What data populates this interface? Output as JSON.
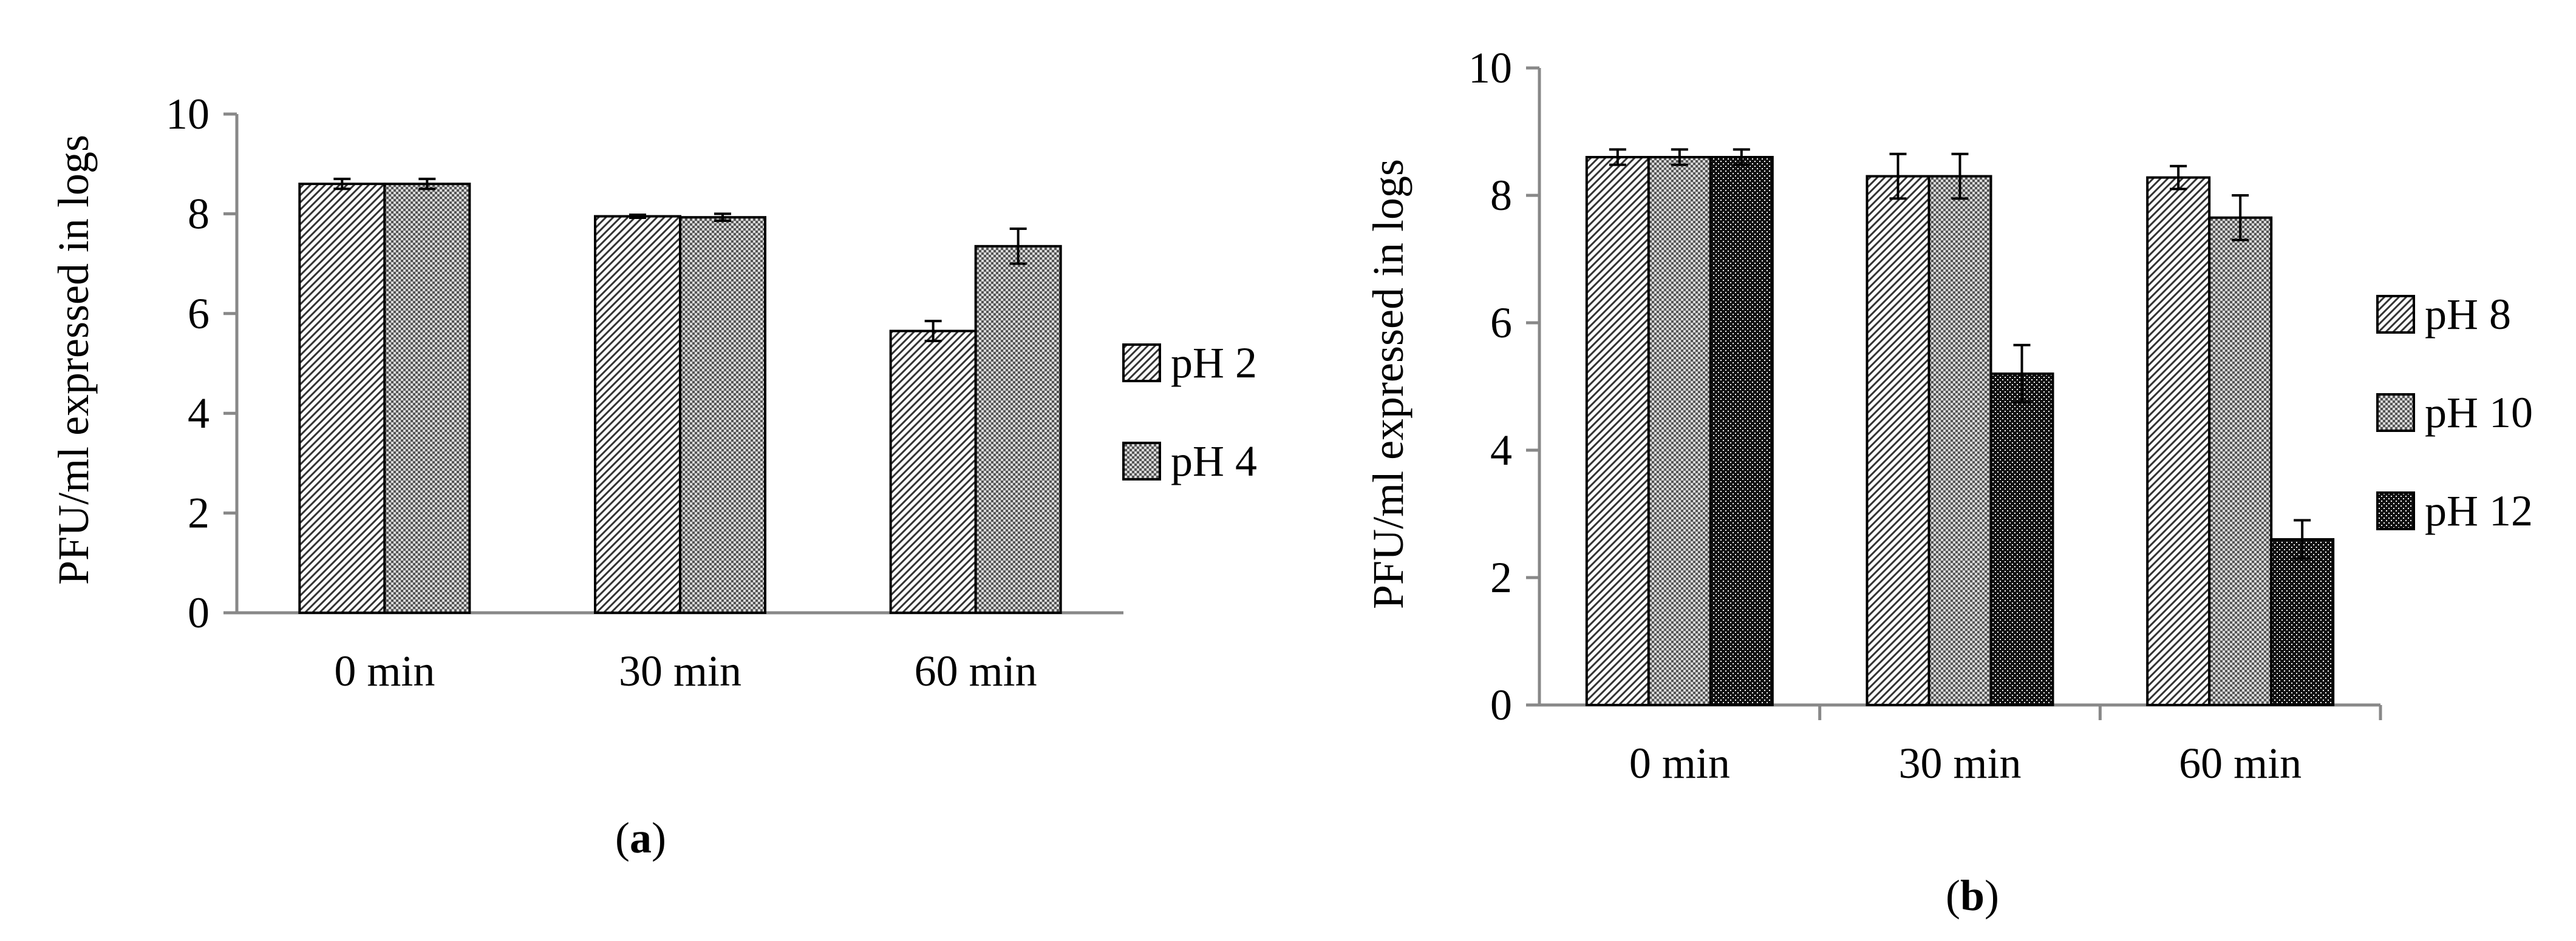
{
  "chart_data": [
    {
      "type": "bar",
      "panel_label": "a",
      "title": "",
      "xlabel": "",
      "ylabel": "PFU/ml expressed in logs",
      "ylim": [
        0,
        10
      ],
      "yticks": [
        "0",
        "2",
        "4",
        "6",
        "8",
        "10"
      ],
      "categories": [
        "0 min",
        "30 min",
        "60 min"
      ],
      "grid": false,
      "legend_position": "right",
      "series": [
        {
          "name": "pH 2",
          "pattern": "diagonal-hatch",
          "values": [
            8.6,
            7.95,
            5.65
          ],
          "errors": [
            0.1,
            0.03,
            0.2
          ]
        },
        {
          "name": "pH 4",
          "pattern": "checker",
          "values": [
            8.6,
            7.93,
            7.35
          ],
          "errors": [
            0.1,
            0.07,
            0.35
          ]
        }
      ]
    },
    {
      "type": "bar",
      "panel_label": "b",
      "title": "",
      "xlabel": "",
      "ylabel": "PFU/ml expressed in logs",
      "ylim": [
        0,
        10
      ],
      "yticks": [
        "0",
        "2",
        "4",
        "6",
        "8",
        "10"
      ],
      "categories": [
        "0 min",
        "30 min",
        "60 min"
      ],
      "grid": false,
      "legend_position": "right",
      "series": [
        {
          "name": "pH 8",
          "pattern": "diagonal-hatch",
          "values": [
            8.6,
            8.3,
            8.28
          ],
          "errors": [
            0.12,
            0.35,
            0.18
          ]
        },
        {
          "name": "pH 10",
          "pattern": "checker",
          "values": [
            8.6,
            8.3,
            7.65
          ],
          "errors": [
            0.12,
            0.35,
            0.35
          ]
        },
        {
          "name": "pH 12",
          "pattern": "dense-dots",
          "values": [
            8.6,
            5.2,
            2.6
          ],
          "errors": [
            0.12,
            0.45,
            0.3
          ]
        }
      ]
    }
  ]
}
